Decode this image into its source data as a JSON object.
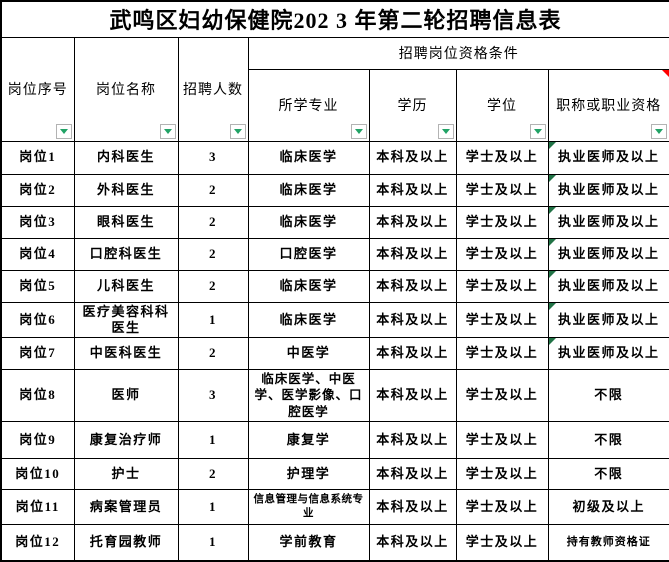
{
  "title": "武鸣区妇幼保健院202 3 年第二轮招聘信息表",
  "group_header": "招聘岗位资格条件",
  "columns": {
    "seq": "岗位序号",
    "name": "岗位名称",
    "count": "招聘人数",
    "major": "所学专业",
    "edu": "学历",
    "degree": "学位",
    "cert": "职称或职业资格"
  },
  "rows": [
    {
      "seq": "岗位1",
      "name": "内科医生",
      "count": "3",
      "major": "临床医学",
      "edu": "本科及以上",
      "degree": "学士及以上",
      "cert": "执业医师及以上"
    },
    {
      "seq": "岗位2",
      "name": "外科医生",
      "count": "2",
      "major": "临床医学",
      "edu": "本科及以上",
      "degree": "学士及以上",
      "cert": "执业医师及以上"
    },
    {
      "seq": "岗位3",
      "name": "眼科医生",
      "count": "2",
      "major": "临床医学",
      "edu": "本科及以上",
      "degree": "学士及以上",
      "cert": "执业医师及以上"
    },
    {
      "seq": "岗位4",
      "name": "口腔科医生",
      "count": "2",
      "major": "口腔医学",
      "edu": "本科及以上",
      "degree": "学士及以上",
      "cert": "执业医师及以上"
    },
    {
      "seq": "岗位5",
      "name": "儿科医生",
      "count": "2",
      "major": "临床医学",
      "edu": "本科及以上",
      "degree": "学士及以上",
      "cert": "执业医师及以上"
    },
    {
      "seq": "岗位6",
      "name": "医疗美容科科医生",
      "count": "1",
      "major": "临床医学",
      "edu": "本科及以上",
      "degree": "学士及以上",
      "cert": "执业医师及以上"
    },
    {
      "seq": "岗位7",
      "name": "中医科医生",
      "count": "2",
      "major": "中医学",
      "edu": "本科及以上",
      "degree": "学士及以上",
      "cert": "执业医师及以上"
    },
    {
      "seq": "岗位8",
      "name": "医师",
      "count": "3",
      "major": "临床医学、中医学、医学影像、口腔医学",
      "edu": "本科及以上",
      "degree": "学士及以上",
      "cert": "不限"
    },
    {
      "seq": "岗位9",
      "name": "康复治疗师",
      "count": "1",
      "major": "康复学",
      "edu": "本科及以上",
      "degree": "学士及以上",
      "cert": "不限"
    },
    {
      "seq": "岗位10",
      "name": "护士",
      "count": "2",
      "major": "护理学",
      "edu": "本科及以上",
      "degree": "学士及以上",
      "cert": "不限"
    },
    {
      "seq": "岗位11",
      "name": "病案管理员",
      "count": "1",
      "major": "信息管理与信息系统专业",
      "edu": "本科及以上",
      "degree": "学士及以上",
      "cert": "初级及以上"
    },
    {
      "seq": "岗位12",
      "name": "托育园教师",
      "count": "1",
      "major": "学前教育",
      "edu": "本科及以上",
      "degree": "学士及以上",
      "cert": "持有教师资格证"
    }
  ],
  "icons": {
    "filter_dropdown": "autofilter-dropdown-arrow",
    "red_corner": "comment-indicator",
    "green_corner": "cell-flag-indicator"
  },
  "colors": {
    "border": "#000000",
    "filter_arrow_green": "#21a366",
    "corner_green": "#217346",
    "corner_red": "#ff0000",
    "background": "#ffffff"
  }
}
